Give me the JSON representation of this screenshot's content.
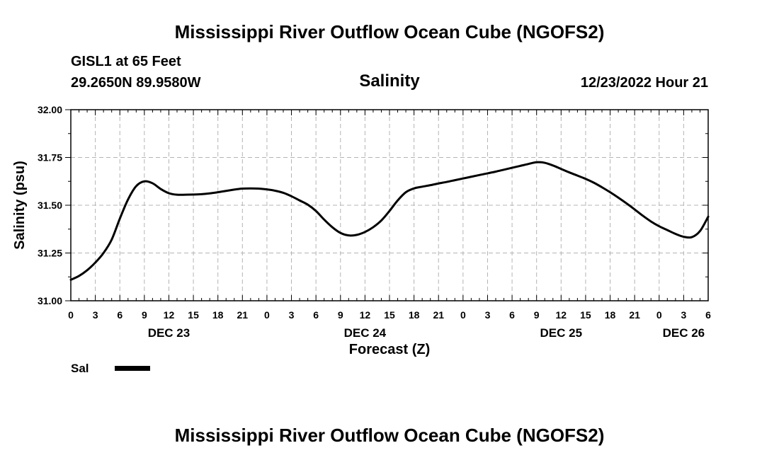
{
  "header": {
    "title": "Mississippi River Outflow Ocean Cube (NGOFS2)",
    "station": "GISL1 at 65 Feet",
    "coords": "29.2650N  89.9580W",
    "variable": "Salinity",
    "timestamp": "12/23/2022 Hour 21"
  },
  "footer": {
    "title": "Mississippi River Outflow Ocean Cube (NGOFS2)"
  },
  "chart_data": {
    "type": "line",
    "title": "Salinity",
    "xlabel": "Forecast (Z)",
    "ylabel": "Salinity (psu)",
    "ylim": [
      31.0,
      32.0
    ],
    "xlim_hours": [
      0,
      78
    ],
    "yticks": [
      "31.00",
      "31.25",
      "31.50",
      "31.75",
      "32.00"
    ],
    "xtick_labels": [
      "0",
      "3",
      "6",
      "9",
      "12",
      "15",
      "18",
      "21",
      "0",
      "3",
      "6",
      "9",
      "12",
      "15",
      "18",
      "21",
      "0",
      "3",
      "6",
      "9",
      "12",
      "15",
      "18",
      "21",
      "0",
      "3",
      "6"
    ],
    "day_labels": [
      {
        "label": "DEC 23",
        "hour": 12
      },
      {
        "label": "DEC 24",
        "hour": 36
      },
      {
        "label": "DEC 25",
        "hour": 60
      },
      {
        "label": "DEC 26",
        "hour": 75
      }
    ],
    "grid": true,
    "legend": {
      "position": "bottom-left",
      "entries": [
        "Sal"
      ]
    },
    "series": [
      {
        "name": "Sal",
        "color": "#000000",
        "x": [
          0,
          1,
          2,
          3,
          4,
          5,
          6,
          7,
          8,
          9,
          10,
          11,
          12,
          13,
          14,
          15,
          16,
          17,
          18,
          19,
          20,
          21,
          22,
          23,
          24,
          25,
          26,
          27,
          28,
          29,
          30,
          31,
          32,
          33,
          34,
          35,
          36,
          37,
          38,
          39,
          40,
          41,
          42,
          43,
          44,
          45,
          46,
          47,
          48,
          49,
          50,
          51,
          52,
          53,
          54,
          55,
          56,
          57,
          58,
          59,
          60,
          61,
          62,
          63,
          64,
          65,
          66,
          67,
          68,
          69,
          70,
          71,
          72,
          73,
          74,
          75,
          76,
          77,
          78
        ],
        "values": [
          31.11,
          31.13,
          31.16,
          31.2,
          31.25,
          31.32,
          31.43,
          31.53,
          31.6,
          31.625,
          31.615,
          31.585,
          31.563,
          31.555,
          31.555,
          31.556,
          31.558,
          31.562,
          31.568,
          31.575,
          31.582,
          31.587,
          31.588,
          31.587,
          31.583,
          31.576,
          31.565,
          31.547,
          31.525,
          31.503,
          31.47,
          31.425,
          31.385,
          31.355,
          31.342,
          31.345,
          31.36,
          31.385,
          31.42,
          31.47,
          31.525,
          31.568,
          31.588,
          31.597,
          31.605,
          31.614,
          31.622,
          31.631,
          31.64,
          31.649,
          31.658,
          31.667,
          31.676,
          31.686,
          31.696,
          31.706,
          31.716,
          31.725,
          31.722,
          31.708,
          31.69,
          31.672,
          31.655,
          31.638,
          31.618,
          31.594,
          31.568,
          31.54,
          31.51,
          31.478,
          31.445,
          31.415,
          31.39,
          31.37,
          31.35,
          31.335,
          31.333,
          31.365,
          31.44
        ]
      }
    ]
  }
}
